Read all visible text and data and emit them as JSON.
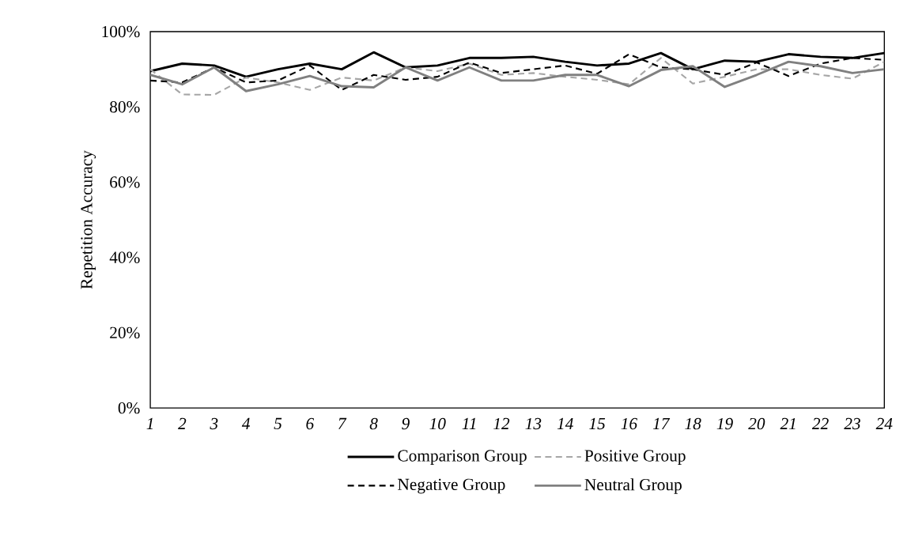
{
  "chart_data": {
    "type": "line",
    "ylabel": "Repetition Accuracy",
    "categories": [
      "1",
      "2",
      "3",
      "4",
      "5",
      "6",
      "7",
      "8",
      "9",
      "10",
      "11",
      "12",
      "13",
      "14",
      "15",
      "16",
      "17",
      "18",
      "19",
      "20",
      "21",
      "22",
      "23",
      "24"
    ],
    "ylim": [
      0,
      100
    ],
    "yticks": [
      {
        "value": 0,
        "label": "0%"
      },
      {
        "value": 20,
        "label": "20%"
      },
      {
        "value": 40,
        "label": "40%"
      },
      {
        "value": 60,
        "label": "60%"
      },
      {
        "value": 80,
        "label": "80%"
      },
      {
        "value": 100,
        "label": "100%"
      }
    ],
    "grid": false,
    "legend": "bottom",
    "series": [
      {
        "name": "Comparison Group",
        "color": "#000000",
        "line_style": "solid",
        "values": [
          89.5,
          91.5,
          91,
          88,
          90,
          91.5,
          90,
          94.5,
          90.5,
          91,
          93,
          93,
          93.3,
          92,
          91,
          91.5,
          94.3,
          90,
          92.3,
          92,
          94,
          93.3,
          93,
          94.3
        ]
      },
      {
        "name": "Positive Group",
        "color": "#a6a6a6",
        "line_style": "dashed",
        "values": [
          90,
          83.3,
          83.2,
          87.8,
          86.5,
          84.5,
          87.8,
          87,
          90.5,
          89.5,
          91.5,
          88.5,
          89,
          88,
          87.2,
          86,
          93,
          86.2,
          88,
          90,
          90,
          88.5,
          87.5,
          92
        ]
      },
      {
        "name": "Negative Group",
        "color": "#000000",
        "line_style": "dashed",
        "values": [
          87,
          86.5,
          90.5,
          86.5,
          87,
          91,
          84.5,
          88.5,
          87.2,
          88,
          91.8,
          89,
          90,
          91,
          88.8,
          94,
          90.5,
          90,
          88.5,
          91.8,
          88.2,
          91.5,
          93,
          92.5
        ]
      },
      {
        "name": "Neutral Group",
        "color": "#808080",
        "line_style": "solid",
        "values": [
          88.5,
          86,
          90.5,
          84.2,
          86,
          88.2,
          85.5,
          85.2,
          90.5,
          87,
          90.5,
          87,
          87,
          88.5,
          88.5,
          85.5,
          89.8,
          90.8,
          85.3,
          88.5,
          92,
          90.8,
          89,
          90
        ]
      }
    ]
  }
}
